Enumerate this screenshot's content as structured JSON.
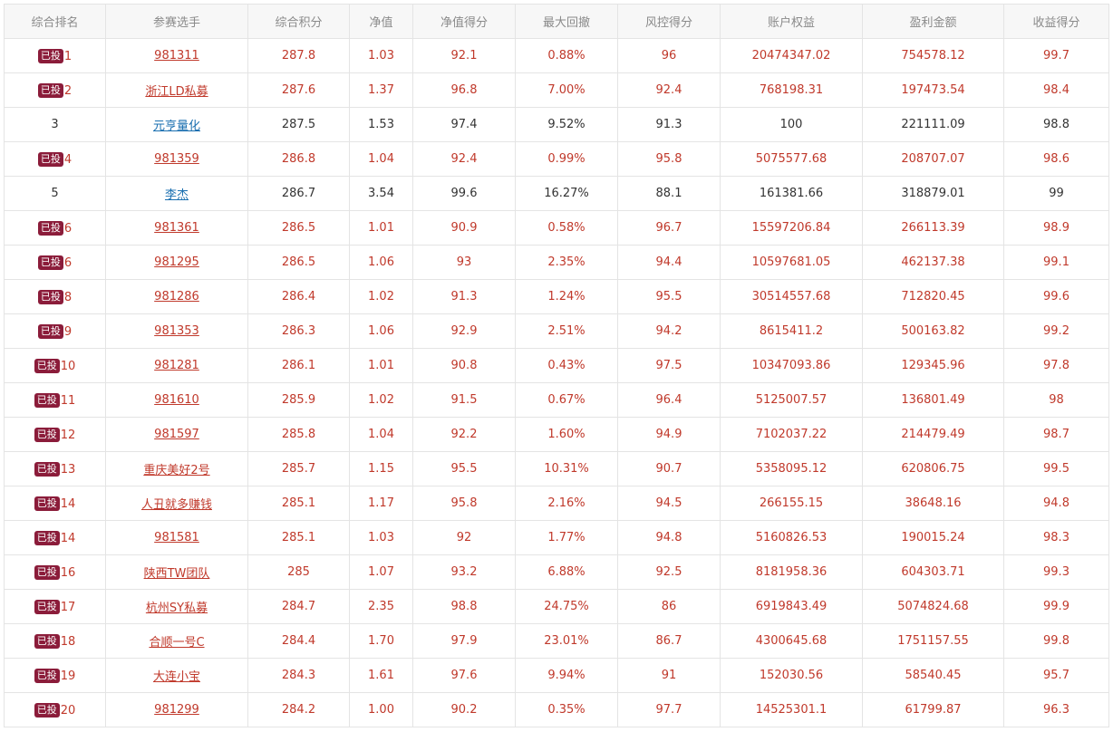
{
  "colors": {
    "invested_text": "#c0392b",
    "normal_text": "#333333",
    "normal_link": "#1a6fb0",
    "badge_bg": "#8b1c3a",
    "header_bg": "#f7f7f7"
  },
  "table": {
    "headers": [
      "综合排名",
      "参赛选手",
      "综合积分",
      "净值",
      "净值得分",
      "最大回撤",
      "风控得分",
      "账户权益",
      "盈利金额",
      "收益得分"
    ],
    "rows": [
      {
        "badge": "已投",
        "rank": "1",
        "player": "981311",
        "score": "287.8",
        "nav": "1.03",
        "nav_score": "92.1",
        "drawdown": "0.88%",
        "risk_score": "96",
        "equity": "20474347.02",
        "profit": "754578.12",
        "return_score": "99.7"
      },
      {
        "badge": "已投",
        "rank": "2",
        "player": "浙江LD私募",
        "score": "287.6",
        "nav": "1.37",
        "nav_score": "96.8",
        "drawdown": "7.00%",
        "risk_score": "92.4",
        "equity": "768198.31",
        "profit": "197473.54",
        "return_score": "98.4"
      },
      {
        "badge": "",
        "rank": "3",
        "player": "元亨量化",
        "score": "287.5",
        "nav": "1.53",
        "nav_score": "97.4",
        "drawdown": "9.52%",
        "risk_score": "91.3",
        "equity": "100",
        "profit": "221111.09",
        "return_score": "98.8"
      },
      {
        "badge": "已投",
        "rank": "4",
        "player": "981359",
        "score": "286.8",
        "nav": "1.04",
        "nav_score": "92.4",
        "drawdown": "0.99%",
        "risk_score": "95.8",
        "equity": "5075577.68",
        "profit": "208707.07",
        "return_score": "98.6"
      },
      {
        "badge": "",
        "rank": "5",
        "player": "李杰",
        "score": "286.7",
        "nav": "3.54",
        "nav_score": "99.6",
        "drawdown": "16.27%",
        "risk_score": "88.1",
        "equity": "161381.66",
        "profit": "318879.01",
        "return_score": "99"
      },
      {
        "badge": "已投",
        "rank": "6",
        "player": "981361",
        "score": "286.5",
        "nav": "1.01",
        "nav_score": "90.9",
        "drawdown": "0.58%",
        "risk_score": "96.7",
        "equity": "15597206.84",
        "profit": "266113.39",
        "return_score": "98.9"
      },
      {
        "badge": "已投",
        "rank": "6",
        "player": "981295",
        "score": "286.5",
        "nav": "1.06",
        "nav_score": "93",
        "drawdown": "2.35%",
        "risk_score": "94.4",
        "equity": "10597681.05",
        "profit": "462137.38",
        "return_score": "99.1"
      },
      {
        "badge": "已投",
        "rank": "8",
        "player": "981286",
        "score": "286.4",
        "nav": "1.02",
        "nav_score": "91.3",
        "drawdown": "1.24%",
        "risk_score": "95.5",
        "equity": "30514557.68",
        "profit": "712820.45",
        "return_score": "99.6"
      },
      {
        "badge": "已投",
        "rank": "9",
        "player": "981353",
        "score": "286.3",
        "nav": "1.06",
        "nav_score": "92.9",
        "drawdown": "2.51%",
        "risk_score": "94.2",
        "equity": "8615411.2",
        "profit": "500163.82",
        "return_score": "99.2"
      },
      {
        "badge": "已投",
        "rank": "10",
        "player": "981281",
        "score": "286.1",
        "nav": "1.01",
        "nav_score": "90.8",
        "drawdown": "0.43%",
        "risk_score": "97.5",
        "equity": "10347093.86",
        "profit": "129345.96",
        "return_score": "97.8"
      },
      {
        "badge": "已投",
        "rank": "11",
        "player": "981610",
        "score": "285.9",
        "nav": "1.02",
        "nav_score": "91.5",
        "drawdown": "0.67%",
        "risk_score": "96.4",
        "equity": "5125007.57",
        "profit": "136801.49",
        "return_score": "98"
      },
      {
        "badge": "已投",
        "rank": "12",
        "player": "981597",
        "score": "285.8",
        "nav": "1.04",
        "nav_score": "92.2",
        "drawdown": "1.60%",
        "risk_score": "94.9",
        "equity": "7102037.22",
        "profit": "214479.49",
        "return_score": "98.7"
      },
      {
        "badge": "已投",
        "rank": "13",
        "player": "重庆美好2号",
        "score": "285.7",
        "nav": "1.15",
        "nav_score": "95.5",
        "drawdown": "10.31%",
        "risk_score": "90.7",
        "equity": "5358095.12",
        "profit": "620806.75",
        "return_score": "99.5"
      },
      {
        "badge": "已投",
        "rank": "14",
        "player": "人丑就多赚钱",
        "score": "285.1",
        "nav": "1.17",
        "nav_score": "95.8",
        "drawdown": "2.16%",
        "risk_score": "94.5",
        "equity": "266155.15",
        "profit": "38648.16",
        "return_score": "94.8"
      },
      {
        "badge": "已投",
        "rank": "14",
        "player": "981581",
        "score": "285.1",
        "nav": "1.03",
        "nav_score": "92",
        "drawdown": "1.77%",
        "risk_score": "94.8",
        "equity": "5160826.53",
        "profit": "190015.24",
        "return_score": "98.3"
      },
      {
        "badge": "已投",
        "rank": "16",
        "player": "陕西TW团队",
        "score": "285",
        "nav": "1.07",
        "nav_score": "93.2",
        "drawdown": "6.88%",
        "risk_score": "92.5",
        "equity": "8181958.36",
        "profit": "604303.71",
        "return_score": "99.3"
      },
      {
        "badge": "已投",
        "rank": "17",
        "player": "杭州SY私募",
        "score": "284.7",
        "nav": "2.35",
        "nav_score": "98.8",
        "drawdown": "24.75%",
        "risk_score": "86",
        "equity": "6919843.49",
        "profit": "5074824.68",
        "return_score": "99.9"
      },
      {
        "badge": "已投",
        "rank": "18",
        "player": "合顺一号C",
        "score": "284.4",
        "nav": "1.70",
        "nav_score": "97.9",
        "drawdown": "23.01%",
        "risk_score": "86.7",
        "equity": "4300645.68",
        "profit": "1751157.55",
        "return_score": "99.8"
      },
      {
        "badge": "已投",
        "rank": "19",
        "player": "大连小宝",
        "score": "284.3",
        "nav": "1.61",
        "nav_score": "97.6",
        "drawdown": "9.94%",
        "risk_score": "91",
        "equity": "152030.56",
        "profit": "58540.45",
        "return_score": "95.7"
      },
      {
        "badge": "已投",
        "rank": "20",
        "player": "981299",
        "score": "284.2",
        "nav": "1.00",
        "nav_score": "90.2",
        "drawdown": "0.35%",
        "risk_score": "97.7",
        "equity": "14525301.1",
        "profit": "61799.87",
        "return_score": "96.3"
      }
    ]
  }
}
